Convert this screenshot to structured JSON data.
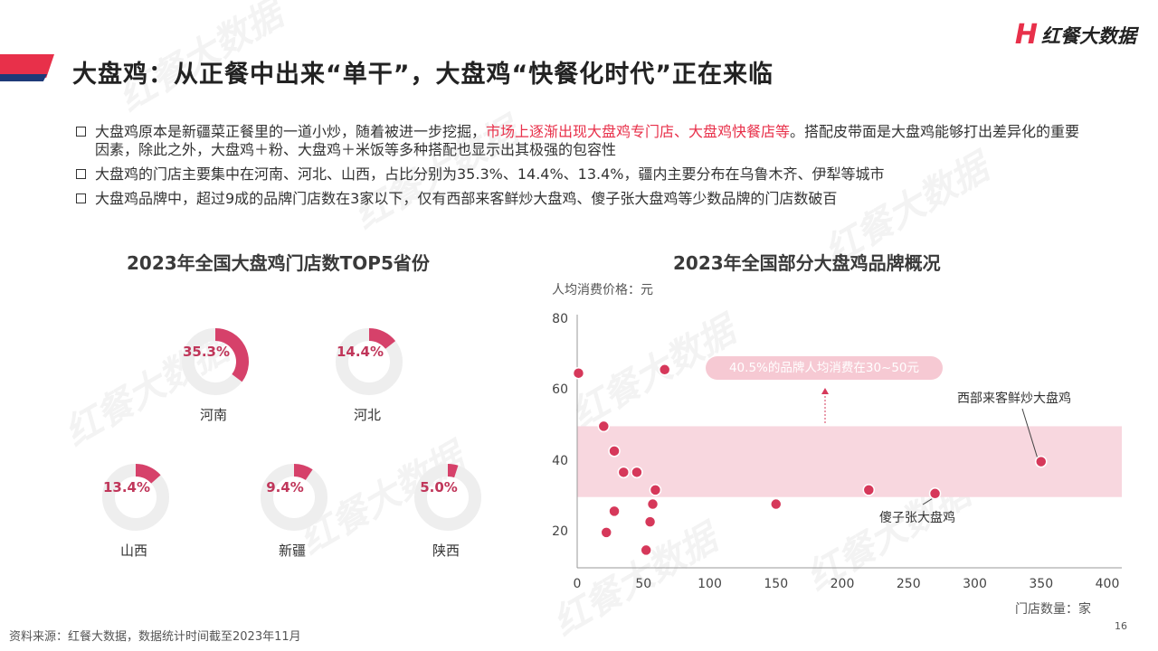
{
  "brand": {
    "mark": "H",
    "text": "红餐大数据"
  },
  "title": "大盘鸡：从正餐中出来“单干”，大盘鸡“快餐化时代”正在来临",
  "bullets": [
    {
      "before": "大盘鸡原本是新疆菜正餐里的一道小炒，随着被进一步挖掘，",
      "highlight": "市场上逐渐出现大盘鸡专门店、大盘鸡快餐店等",
      "after": "。搭配皮带面是大盘鸡能够打出差异化的重要因素，除此之外，大盘鸡＋粉、大盘鸡＋米饭等多种搭配也显示出其极强的包容性"
    },
    {
      "before": "大盘鸡的门店主要集中在河南、河北、山西，占比分别为35.3%、14.4%、13.4%，疆内主要分布在乌鲁木齐、伊犁等城市",
      "highlight": "",
      "after": ""
    },
    {
      "before": "大盘鸡品牌中，超过9成的品牌门店数在3家以下，仅有西部来客鲜炒大盘鸡、傻子张大盘鸡等少数品牌的门店数破百",
      "highlight": "",
      "after": ""
    }
  ],
  "chart_data": [
    {
      "type": "donut",
      "title": "2023年全国大盘鸡门店数TOP5省份",
      "categories": [
        "河南",
        "河北",
        "山西",
        "新疆",
        "陕西"
      ],
      "values": [
        35.3,
        14.4,
        13.4,
        9.4,
        5.0
      ],
      "value_labels": [
        "35.3%",
        "14.4%",
        "13.4%",
        "9.4%",
        "5.0%"
      ],
      "colors": {
        "fill": "#d6416a",
        "track": "#eeeeee",
        "label": "#c0365a"
      }
    },
    {
      "type": "scatter",
      "title": "2023年全国部分大盘鸡品牌概况",
      "xlabel": "门店数量：家",
      "ylabel": "人均消费价格：元",
      "xlim": [
        0,
        400
      ],
      "ylim": [
        10,
        80
      ],
      "xticks": [
        0,
        50,
        100,
        150,
        200,
        250,
        300,
        350,
        400
      ],
      "yticks": [
        20,
        40,
        60,
        80
      ],
      "points": [
        {
          "x": 1,
          "y": 65
        },
        {
          "x": 20,
          "y": 50
        },
        {
          "x": 22,
          "y": 20
        },
        {
          "x": 28,
          "y": 43
        },
        {
          "x": 28,
          "y": 26
        },
        {
          "x": 35,
          "y": 37
        },
        {
          "x": 45,
          "y": 37
        },
        {
          "x": 52,
          "y": 15
        },
        {
          "x": 55,
          "y": 23
        },
        {
          "x": 57,
          "y": 28
        },
        {
          "x": 59,
          "y": 32
        },
        {
          "x": 66,
          "y": 66
        },
        {
          "x": 150,
          "y": 28
        },
        {
          "x": 220,
          "y": 32
        },
        {
          "x": 270,
          "y": 31
        },
        {
          "x": 350,
          "y": 40
        }
      ],
      "band": {
        "from": 30,
        "to": 50,
        "label": "40.5%的品牌人均消费在30~50元"
      },
      "annotations": [
        {
          "text": "西部来客鲜炒大盘鸡",
          "x": 350,
          "y": 40
        },
        {
          "text": "傻子张大盘鸡",
          "x": 270,
          "y": 31
        }
      ],
      "colors": {
        "point": "#d6385a",
        "point_stroke": "#ffffff",
        "band": "#f8d7df",
        "pill": "#f6c9d3",
        "axis": "#999999"
      }
    }
  ],
  "source": "资料来源：红餐大数据，数据统计时间截至2023年11月",
  "page_number": "16"
}
